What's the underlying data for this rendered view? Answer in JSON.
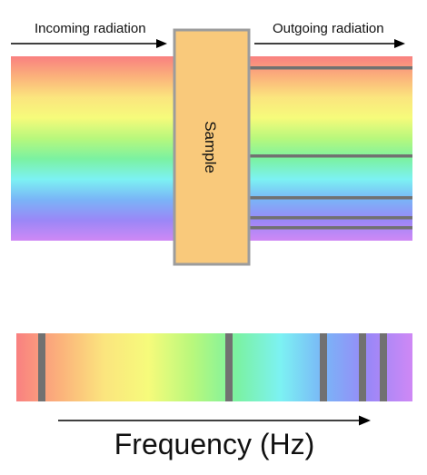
{
  "labels": {
    "incoming": "Incoming radiation",
    "outgoing": "Outgoing radiation",
    "sample": "Sample",
    "frequency": "Frequency (Hz)"
  },
  "colors": {
    "spectrum": [
      "#f98080",
      "#fbb27b",
      "#fbe57e",
      "#f6fb7b",
      "#b8f87c",
      "#7bf2a1",
      "#7cf2f3",
      "#7ab4f7",
      "#9a87f7",
      "#cf88f5"
    ],
    "sample_fill": "#f9c97b",
    "sample_border": "#9c9c9c",
    "absorption_line": "#717171",
    "arrow": "#000000"
  },
  "outgoing_absorption_lines": 5,
  "frequency_absorption_lines": 5
}
